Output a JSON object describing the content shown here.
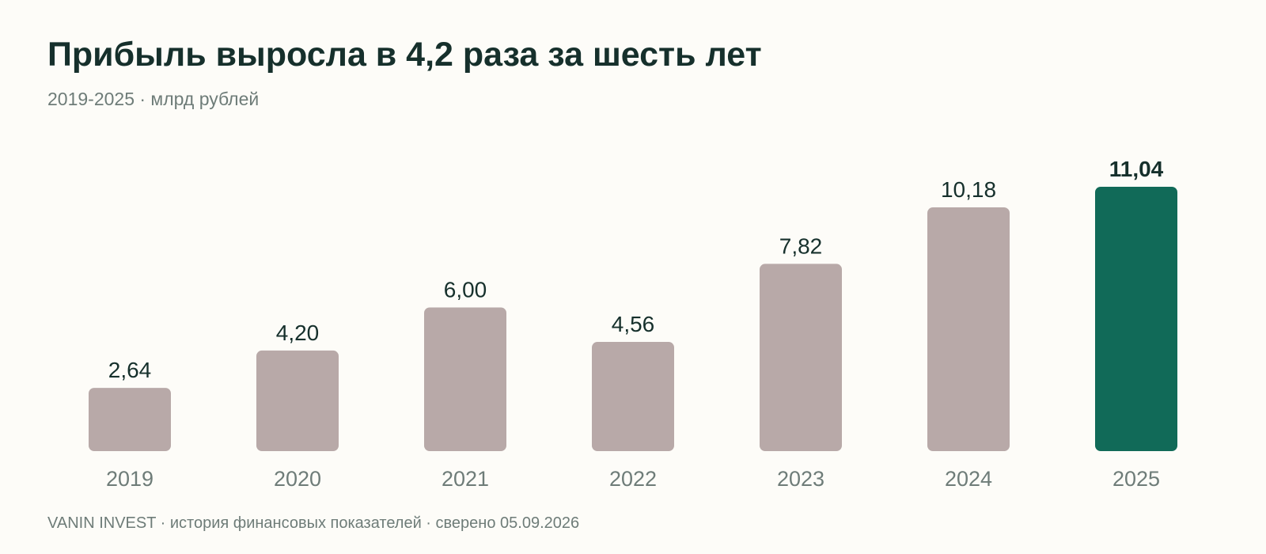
{
  "header": {
    "title": "Прибыль выросла в 4,2 раза за шесть лет",
    "subtitle": "2019-2025 · млрд рублей"
  },
  "footer": {
    "text": "VANIN INVEST · история финансовых показателей · сверено 05.09.2026"
  },
  "colors": {
    "bar": "#b8a9a8",
    "highlight": "#116a58",
    "value_text": "#16302c",
    "axis_text": "#6e7c78"
  },
  "chart_data": {
    "type": "bar",
    "categories": [
      "2019",
      "2020",
      "2021",
      "2022",
      "2023",
      "2024",
      "2025"
    ],
    "values": [
      2.64,
      4.2,
      6.0,
      4.56,
      7.82,
      10.18,
      11.04
    ],
    "value_labels": [
      "2,64",
      "4,20",
      "6,00",
      "4,56",
      "7,82",
      "10,18",
      "11,04"
    ],
    "highlight_index": 6,
    "title": "Прибыль выросла в 4,2 раза за шесть лет",
    "subtitle": "2019-2025 · млрд рублей",
    "xlabel": "",
    "ylabel": "",
    "ylim": [
      0,
      11.04
    ],
    "grid": false,
    "legend": "none"
  }
}
